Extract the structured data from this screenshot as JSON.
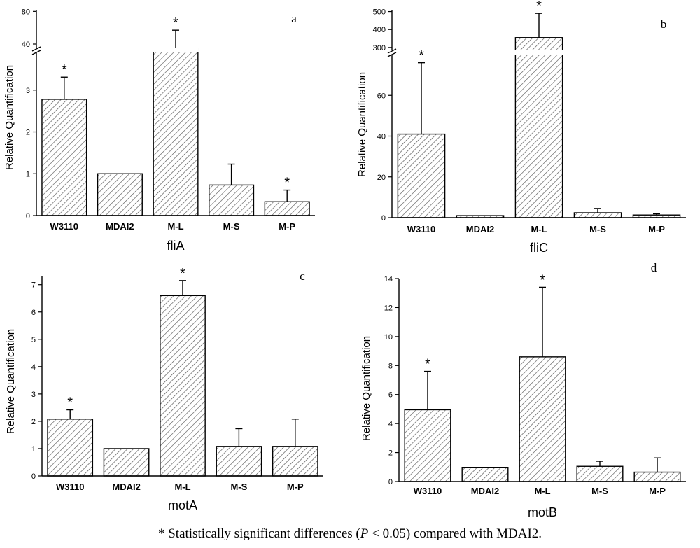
{
  "chart_data": [
    {
      "id": "a",
      "type": "bar",
      "panel_letter": "a",
      "categories": [
        "W3110",
        "MDAI2",
        "M-L",
        "M-S",
        "M-P"
      ],
      "values": [
        2.78,
        1.0,
        35,
        0.73,
        0.33
      ],
      "errors": [
        0.53,
        0,
        22,
        0.5,
        0.28
      ],
      "significant": [
        true,
        false,
        true,
        false,
        true
      ],
      "xlabel": "fliA",
      "ylabel": "Relative Quantification",
      "lower_range": [
        0,
        3.9
      ],
      "lower_ticks": [
        "0",
        "1",
        "2",
        "3"
      ],
      "upper_range": [
        34,
        82
      ],
      "upper_ticks": [
        "40",
        "80"
      ]
    },
    {
      "id": "b",
      "type": "bar",
      "panel_letter": "b",
      "categories": [
        "W3110",
        "MDAI2",
        "M-L",
        "M-S",
        "M-P"
      ],
      "values": [
        41,
        1.0,
        355,
        2.4,
        1.3
      ],
      "errors": [
        35,
        0,
        135,
        2.1,
        0.6
      ],
      "significant": [
        true,
        false,
        true,
        false,
        false
      ],
      "xlabel": "fliC",
      "ylabel": "Relative Quantification",
      "lower_range": [
        0,
        80
      ],
      "lower_ticks": [
        "0",
        "20",
        "40",
        "60"
      ],
      "upper_range": [
        280,
        510
      ],
      "upper_ticks": [
        "300",
        "400",
        "500"
      ]
    },
    {
      "id": "c",
      "type": "bar",
      "panel_letter": "c",
      "categories": [
        "W3110",
        "MDAI2",
        "M-L",
        "M-S",
        "M-P"
      ],
      "values": [
        2.08,
        1.0,
        6.6,
        1.08,
        1.08
      ],
      "errors": [
        0.34,
        0,
        0.55,
        0.65,
        1.0
      ],
      "significant": [
        true,
        false,
        true,
        false,
        false
      ],
      "xlabel": "motA",
      "ylabel": "Relative Quantification",
      "ylim": [
        0,
        7.3
      ],
      "ticks": [
        "0",
        "1",
        "2",
        "3",
        "4",
        "5",
        "6",
        "7"
      ]
    },
    {
      "id": "d",
      "type": "bar",
      "panel_letter": "d",
      "categories": [
        "W3110",
        "MDAI2",
        "M-L",
        "M-S",
        "M-P"
      ],
      "values": [
        4.95,
        0.98,
        8.6,
        1.05,
        0.65
      ],
      "errors": [
        2.65,
        0,
        4.8,
        0.35,
        0.98
      ],
      "significant": [
        true,
        false,
        true,
        false,
        false
      ],
      "xlabel": "motB",
      "ylabel": "Relative Quantification",
      "ylim": [
        0,
        14
      ],
      "ticks": [
        "0",
        "2",
        "4",
        "6",
        "8",
        "10",
        "12",
        "14"
      ]
    }
  ],
  "footnote": {
    "prefix": "* Statistically significant differences (",
    "p_symbol": "P",
    "suffix": " < 0.05) compared with MDAI2."
  }
}
